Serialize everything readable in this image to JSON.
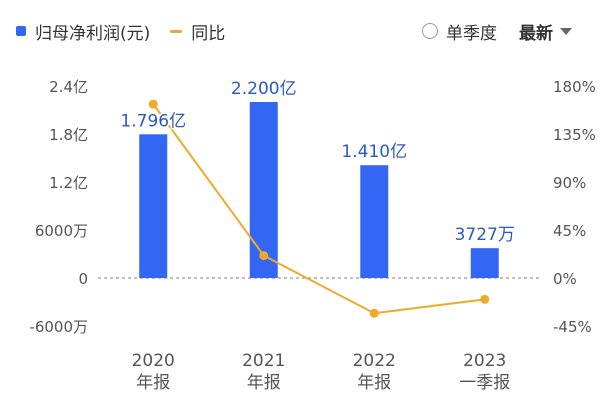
{
  "legend": {
    "bar_label": "归母净利润(元)",
    "line_label": "同比"
  },
  "controls": {
    "radio_label": "单季度",
    "sort_label": "最新"
  },
  "colors": {
    "bar": "#3366f2",
    "line": "#f0a92b",
    "data_label": "#2b59c3",
    "axis_text": "#555555",
    "zero_line": "#aaaaaa"
  },
  "chart_data": {
    "type": "bar",
    "categories": [
      "2020\n年报",
      "2021\n年报",
      "2022\n年报",
      "2023\n一季报"
    ],
    "series": [
      {
        "name": "归母净利润(元)",
        "type": "bar",
        "axis": "left",
        "values": [
          179600000,
          220000000,
          141000000,
          37270000
        ],
        "labels": [
          "1.796亿",
          "2.200亿",
          "1.410亿",
          "3727万"
        ]
      },
      {
        "name": "同比",
        "type": "line",
        "axis": "right",
        "values": [
          163,
          21,
          -33,
          -20
        ]
      }
    ],
    "y_left": {
      "ticks": [
        240000000,
        180000000,
        120000000,
        60000000,
        0,
        -60000000
      ],
      "tick_labels": [
        "2.4亿",
        "1.8亿",
        "1.2亿",
        "6000万",
        "0",
        "-6000万"
      ],
      "ylim": [
        -60000000,
        240000000
      ]
    },
    "y_right": {
      "ticks": [
        180,
        135,
        90,
        45,
        0,
        -45
      ],
      "tick_labels": [
        "180%",
        "135%",
        "90%",
        "45%",
        "0%",
        "-45%"
      ],
      "ylim": [
        -45,
        180
      ]
    },
    "grid": false,
    "zero_line": "dashed",
    "legend_position": "top-left"
  }
}
